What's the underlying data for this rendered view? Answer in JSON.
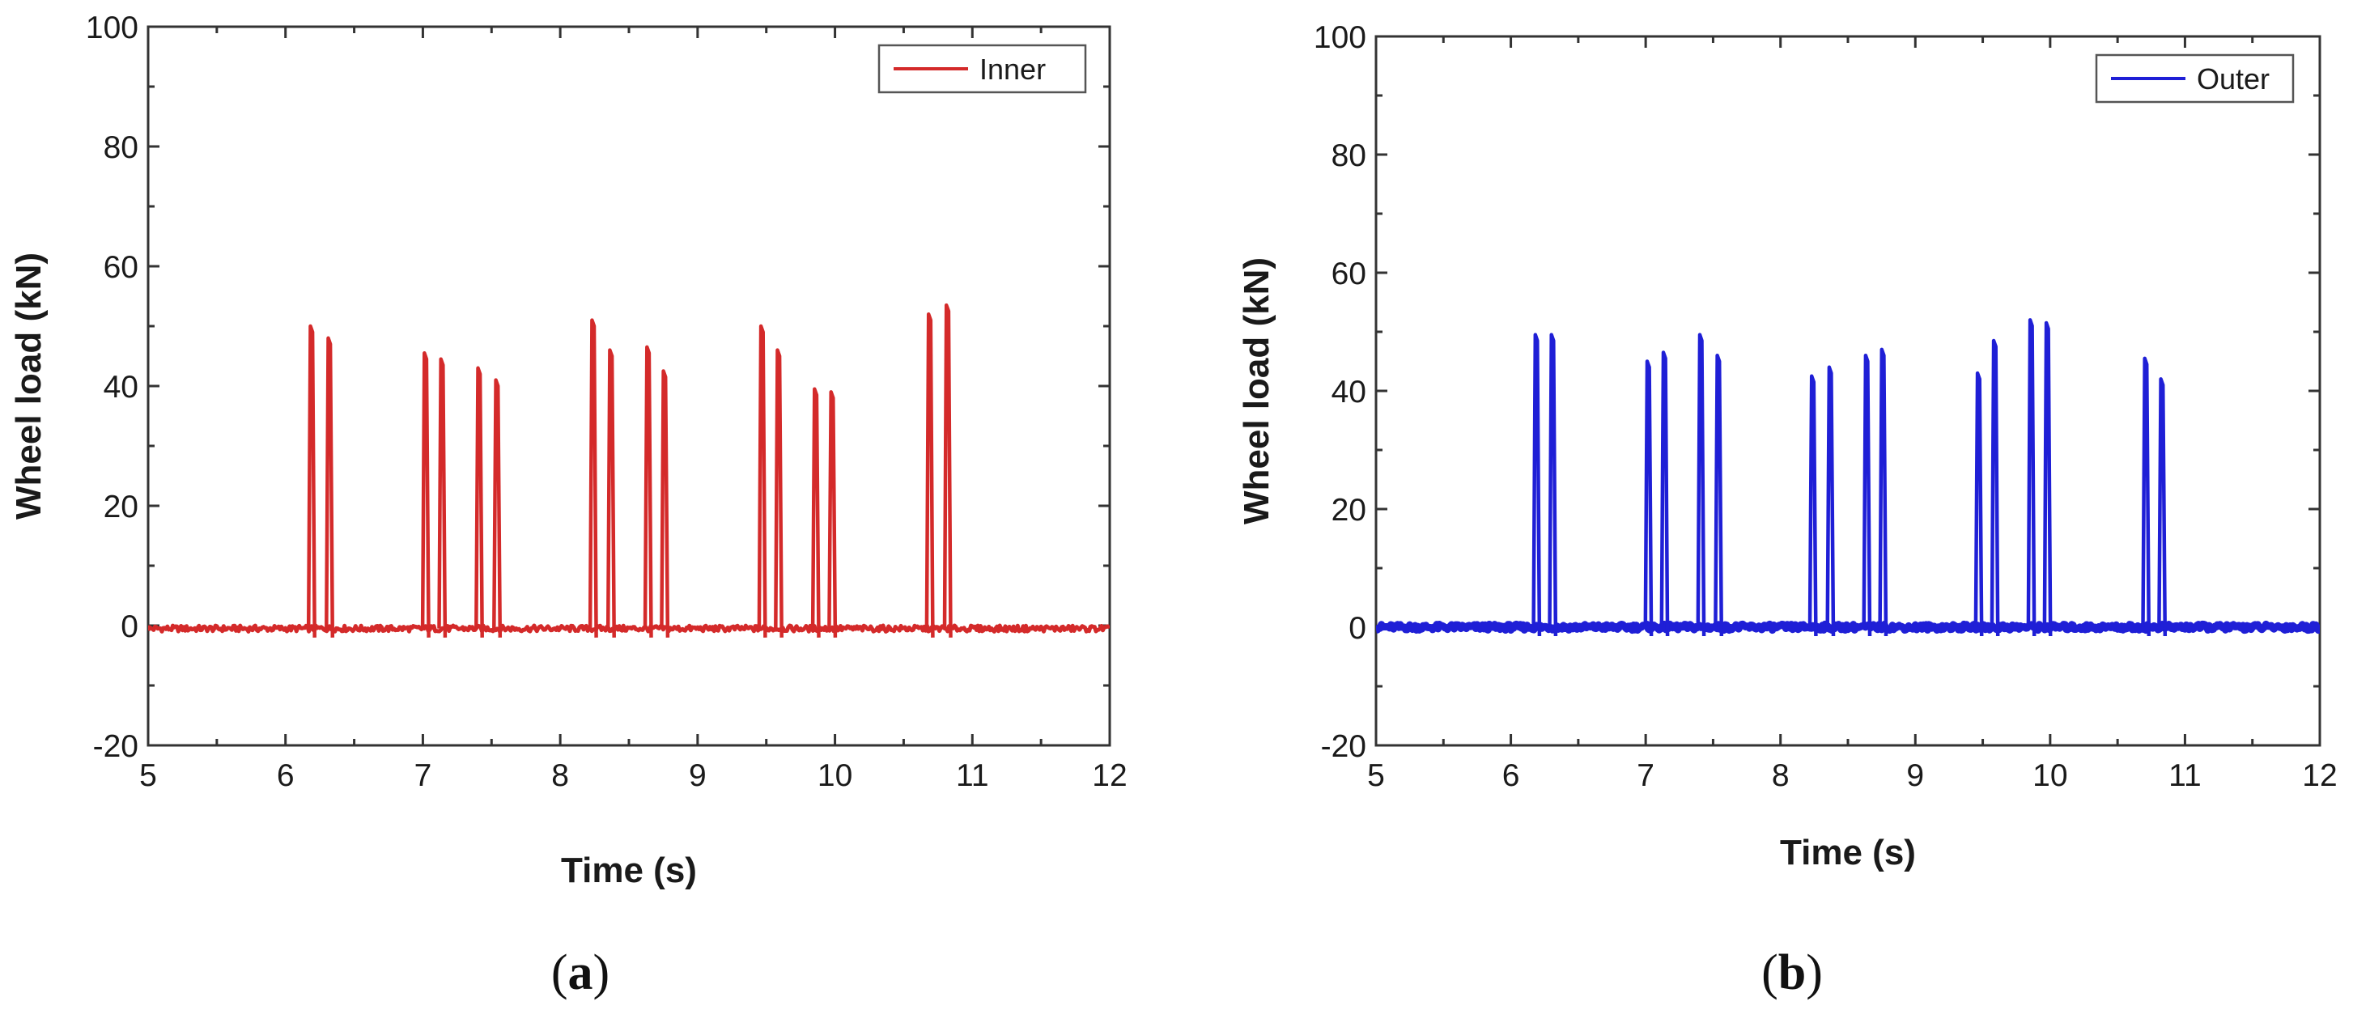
{
  "panels": [
    {
      "open": "(",
      "letter": "a",
      "close": ")"
    },
    {
      "open": "(",
      "letter": "b",
      "close": ")"
    }
  ],
  "chart_data": [
    {
      "type": "line",
      "panel": "a",
      "xlabel": "Time (s)",
      "ylabel": "Wheel load (kN)",
      "xlim": [
        5,
        12
      ],
      "ylim": [
        -20,
        100
      ],
      "xticks": [
        5,
        6,
        7,
        8,
        9,
        10,
        11,
        12
      ],
      "yticks": [
        -20,
        0,
        20,
        40,
        60,
        80,
        100
      ],
      "grid": false,
      "legend_position": "top-right",
      "series": [
        {
          "name": "Inner",
          "color": "#d42a2a",
          "baseline": -0.5,
          "peaks": [
            {
              "t": 6.19,
              "v": 50
            },
            {
              "t": 6.32,
              "v": 48
            },
            {
              "t": 7.02,
              "v": 45.5
            },
            {
              "t": 7.14,
              "v": 44.5
            },
            {
              "t": 7.41,
              "v": 43
            },
            {
              "t": 7.54,
              "v": 41
            },
            {
              "t": 8.24,
              "v": 51
            },
            {
              "t": 8.37,
              "v": 46
            },
            {
              "t": 8.64,
              "v": 46.5
            },
            {
              "t": 8.76,
              "v": 42.5
            },
            {
              "t": 9.47,
              "v": 50
            },
            {
              "t": 9.59,
              "v": 46
            },
            {
              "t": 9.86,
              "v": 39.5
            },
            {
              "t": 9.98,
              "v": 39
            },
            {
              "t": 10.69,
              "v": 52
            },
            {
              "t": 10.82,
              "v": 53.5
            }
          ]
        }
      ]
    },
    {
      "type": "line",
      "panel": "b",
      "xlabel": "Time (s)",
      "ylabel": "Wheel load (kN)",
      "xlim": [
        5,
        12
      ],
      "ylim": [
        -20,
        100
      ],
      "xticks": [
        5,
        6,
        7,
        8,
        9,
        10,
        11,
        12
      ],
      "yticks": [
        -20,
        0,
        20,
        40,
        60,
        80,
        100
      ],
      "grid": false,
      "legend_position": "top-right",
      "series": [
        {
          "name": "Outer",
          "color": "#1f1fd6",
          "baseline": 0,
          "peaks": [
            {
              "t": 6.19,
              "v": 49.5
            },
            {
              "t": 6.31,
              "v": 49.5
            },
            {
              "t": 7.02,
              "v": 45
            },
            {
              "t": 7.14,
              "v": 46.5
            },
            {
              "t": 7.41,
              "v": 49.5
            },
            {
              "t": 7.54,
              "v": 46
            },
            {
              "t": 8.24,
              "v": 42.5
            },
            {
              "t": 8.37,
              "v": 44
            },
            {
              "t": 8.64,
              "v": 46
            },
            {
              "t": 8.76,
              "v": 47
            },
            {
              "t": 9.47,
              "v": 43
            },
            {
              "t": 9.59,
              "v": 48.5
            },
            {
              "t": 9.86,
              "v": 52
            },
            {
              "t": 9.98,
              "v": 51.5
            },
            {
              "t": 10.71,
              "v": 45.5
            },
            {
              "t": 10.83,
              "v": 42
            }
          ]
        }
      ]
    }
  ]
}
